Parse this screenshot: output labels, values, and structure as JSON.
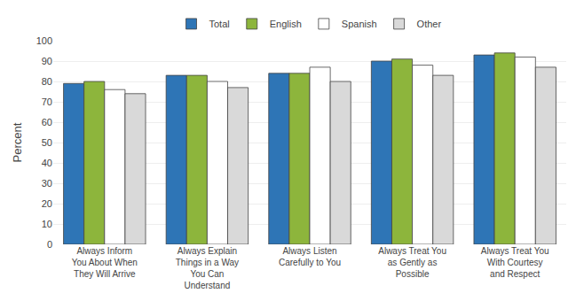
{
  "chart_data": {
    "type": "bar",
    "categories": [
      "Always Inform\nYou About When\nThey Will Arrive",
      "Always Explain\nThings in a Way\nYou Can\nUnderstand",
      "Always Listen\nCarefully to You",
      "Always Treat You\nas Gently as\nPossible",
      "Always Treat You\nWith Courtesy\nand Respect"
    ],
    "series": [
      {
        "name": "Total",
        "color": "#2E75B6",
        "values": [
          79,
          83,
          84,
          90,
          93
        ]
      },
      {
        "name": "English",
        "color": "#8DB53C",
        "values": [
          80,
          83,
          84,
          91,
          94
        ]
      },
      {
        "name": "Spanish",
        "color": "#FFFFFF",
        "values": [
          76,
          80,
          87,
          88,
          92
        ]
      },
      {
        "name": "Other",
        "color": "#D9D9D9",
        "values": [
          74,
          77,
          80,
          83,
          87
        ]
      }
    ],
    "ylabel": "Percent",
    "ylim": [
      0,
      100
    ],
    "yticks": [
      0,
      10,
      20,
      30,
      40,
      50,
      60,
      70,
      80,
      90,
      100
    ],
    "grid": true,
    "legend": "top"
  }
}
